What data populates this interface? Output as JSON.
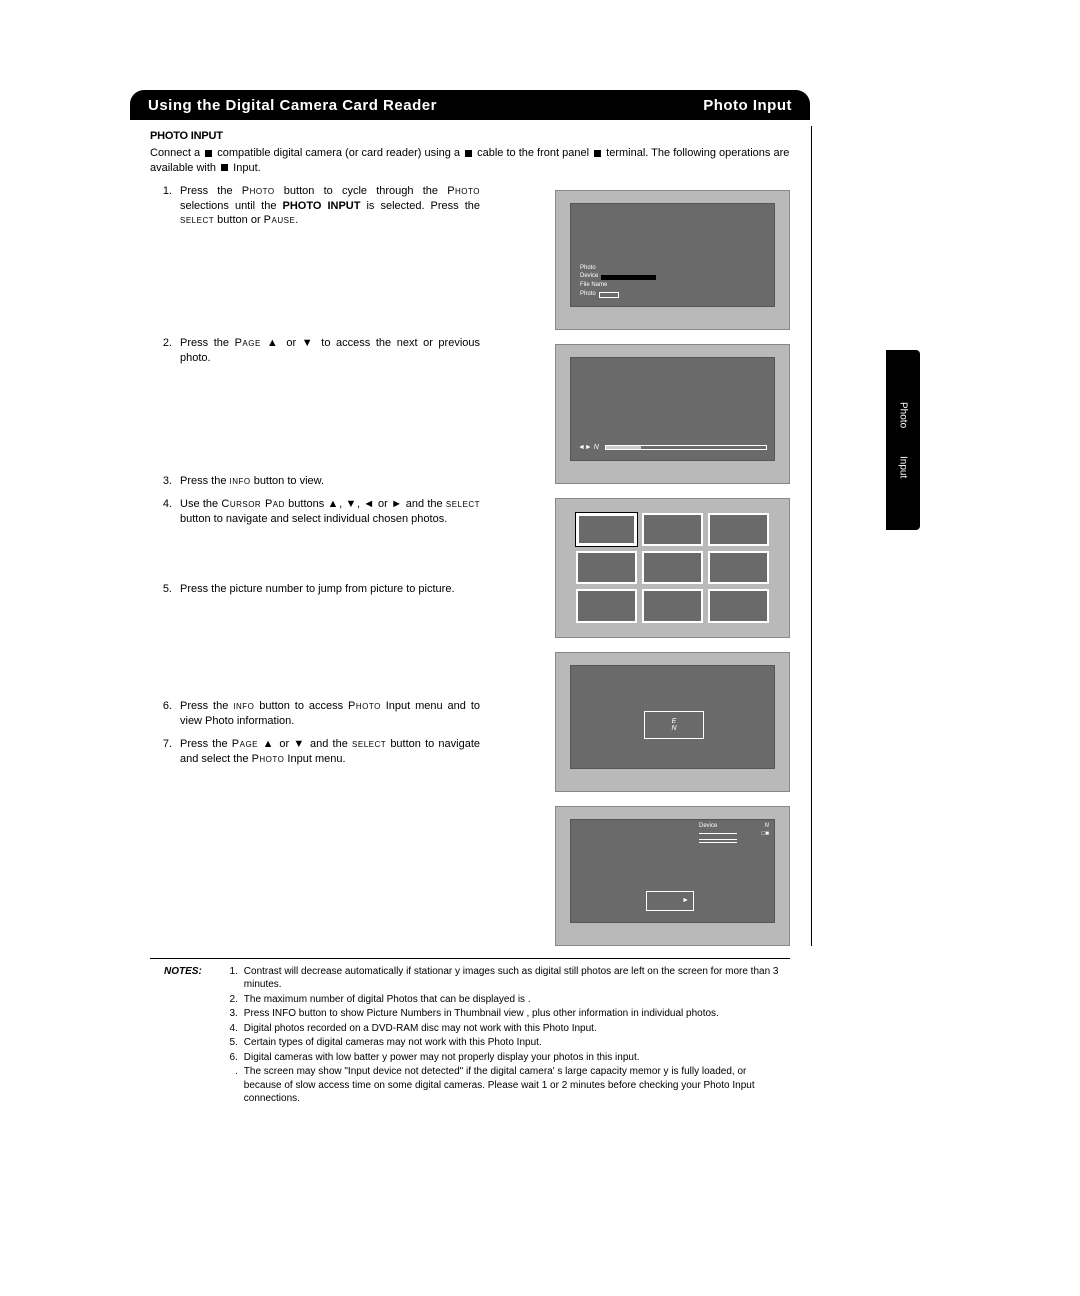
{
  "header": {
    "left": "Using the Digital Camera Card Reader",
    "right": "Photo Input"
  },
  "subtitle": "PHOTO INPUT",
  "intro_parts": {
    "p1": "Connect a ",
    "p2": " compatible digital camera (or card reader) using a ",
    "p3": " cable to the front panel ",
    "p4": " terminal. The following operations are available with ",
    "p5": " Input."
  },
  "steps": [
    {
      "n": "1.",
      "html": "Press the <span class='sc'>Photo</span> button to cycle through the <span class='sc'>Photo</span> selections until the <b>PHOTO INPUT</b> is selected.  Press the <span class='sc'>select</span> button or <span class='sc'>Pause</span>."
    },
    {
      "n": "2.",
      "html": "Press the <span class='sc'>Page ▲</span> or <span class='sc'>▼</span> to access the next or previous photo."
    },
    {
      "n": "3.",
      "html": "Press the <span class='sc'>info</span> button to view."
    },
    {
      "n": "4.",
      "html": "Use the <span class='sc'>Cursor Pad</span> buttons <span class='sc'>▲</span>, <span class='sc'>▼</span>, <span class='sc'>◄</span> or <span class='sc'>►</span> and the <span class='sc'>select</span> button to navigate and select individual chosen photos."
    },
    {
      "n": "5.",
      "html": "Press the picture number to jump from picture to picture."
    },
    {
      "n": "6.",
      "html": "Press the <span class='sc'>info</span> button to access <span class='sc'>Photo</span> Input menu and to view Photo information."
    },
    {
      "n": "7.",
      "html": "Press the <span class='sc'>Page ▲</span> or <span class='sc'>▼</span> and the <span class='sc'>select</span> button to navigate and select the <span class='sc'>Photo</span> Input menu."
    }
  ],
  "screens": {
    "s1": {
      "lines": [
        "Photo",
        "Device",
        "File Name",
        "Photo"
      ],
      "bg": "#6a6a6a",
      "bar_color": "#000000"
    },
    "s2": {
      "arrow_text": "◄► N",
      "bg": "#6a6a6a"
    },
    "s3": {
      "rows": 3,
      "cols": 3,
      "bg": "#6a6a6a"
    },
    "s4": {
      "line1": "E",
      "line2": "N",
      "bg": "#6a6a6a"
    },
    "s5": {
      "labels": [
        "Device",
        "N",
        "",
        "Slide"
      ],
      "thumb_text": "►",
      "bg": "#6a6a6a"
    }
  },
  "notes_label": "NOTES:",
  "notes": [
    {
      "n": "1.",
      "t": "Contrast will decrease automatically if stationar   y images such as digital still photos are left on the screen for more than 3 minutes."
    },
    {
      "n": "2.",
      "t": "The maximum number of digital Photos that can be displayed is    ."
    },
    {
      "n": "3.",
      "t": "Press INFO button to show Picture Numbers in Thumbnail view   , plus other information in individual photos."
    },
    {
      "n": "4.",
      "t": "Digital photos recorded on a DVD-RAM disc may not work with this Photo Input."
    },
    {
      "n": "5.",
      "t": "Certain types of digital cameras may not work with this Photo Input."
    },
    {
      "n": "6.",
      "t": "Digital cameras with low batter  y power may not properly display your photos in this input."
    },
    {
      "n": ".",
      "t": "The screen may show \"Input device not detected\" if the digital camera'    s large capacity memor y is fully loaded, or because of slow access time on some digital cameras.  Please wait 1 or 2 minutes before checking your Photo Input connections."
    }
  ],
  "side_tab": {
    "line1": "Photo",
    "line2": "Input"
  },
  "page_number": "",
  "colors": {
    "page_bg": "#ffffff",
    "header_bg": "#000000",
    "header_fg": "#ffffff",
    "screen_outer": "#b9b9b9",
    "screen_inner": "#6a6a6a",
    "text": "#000000"
  }
}
